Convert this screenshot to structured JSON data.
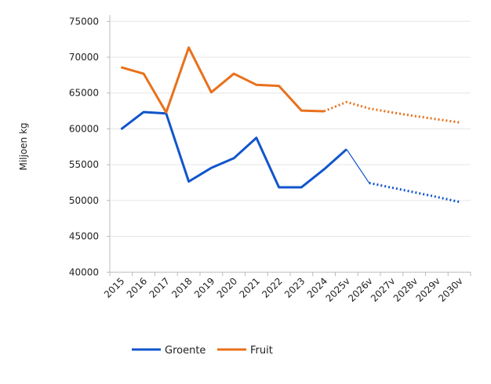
{
  "chart_data": {
    "type": "line",
    "title": "",
    "xlabel": "",
    "ylabel": "Miljoen kg",
    "ylim": [
      40000,
      75000
    ],
    "yticks": [
      "40000",
      "45000",
      "50000",
      "55000",
      "60000",
      "65000",
      "70000",
      "75000"
    ],
    "grid": true,
    "legend_position": "bottom",
    "categories": [
      "2015",
      "2016",
      "2017",
      "2018",
      "2019",
      "2020",
      "2021",
      "2022",
      "2023",
      "2024",
      "2025v",
      "2026v",
      "2027v",
      "2028v",
      "2029v",
      "2030v"
    ],
    "series": [
      {
        "name": "Groente",
        "color": "#1155cc",
        "values": [
          59950,
          62350,
          62150,
          52650,
          54550,
          55900,
          58750,
          51850,
          51850,
          54350,
          57150,
          52450,
          51800,
          51150,
          50500,
          49800
        ],
        "dotted_from_index": 11
      },
      {
        "name": "Fruit",
        "color": "#e8711c",
        "values": [
          68600,
          67700,
          62300,
          71350,
          65100,
          67700,
          66150,
          66000,
          62550,
          62450,
          63750,
          62850,
          62300,
          61800,
          61350,
          60900
        ],
        "dotted_from_index": 10
      }
    ]
  }
}
